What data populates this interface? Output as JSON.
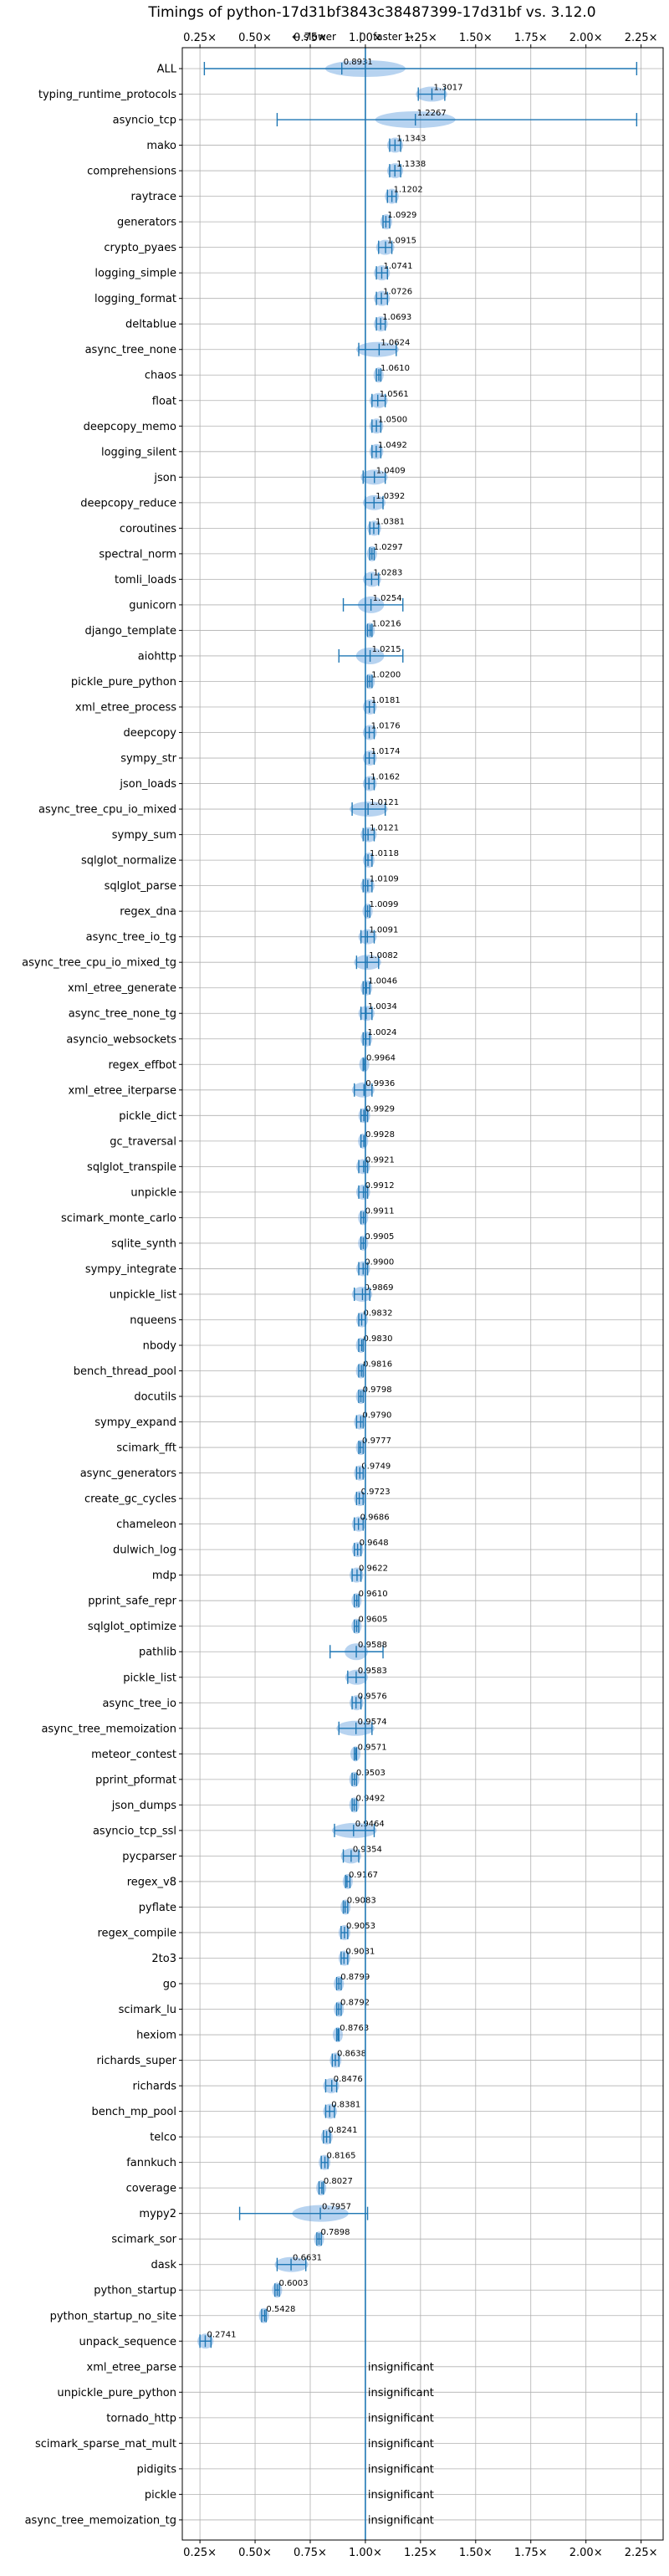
{
  "chart_data": {
    "type": "violin",
    "title": "Timings of python-17d31bf3843c38487399-17d31bf vs. 3.12.0",
    "direction_labels": {
      "slower": "← slower",
      "separator": "|",
      "faster": "faster →"
    },
    "xlim": [
      0.17,
      2.35
    ],
    "x_ticks": [
      0.25,
      0.5,
      0.75,
      1.0,
      1.25,
      1.5,
      1.75,
      2.0,
      2.25
    ],
    "x_tick_labels": [
      "0.25×",
      "0.50×",
      "0.75×",
      "1.00×",
      "1.25×",
      "1.50×",
      "1.75×",
      "2.00×",
      "2.25×"
    ],
    "reference_line": 1.0,
    "insignificant_label": "insignificant",
    "benchmarks": [
      {
        "name": "ALL",
        "value": 0.8931,
        "label": "0.8931",
        "min": 0.27,
        "max": 2.23
      },
      {
        "name": "typing_runtime_protocols",
        "value": 1.3017,
        "label": "1.3017",
        "min": 1.24,
        "max": 1.36
      },
      {
        "name": "asyncio_tcp",
        "value": 1.2267,
        "label": "1.2267",
        "min": 0.6,
        "max": 2.23
      },
      {
        "name": "mako",
        "value": 1.1343,
        "label": "1.1343",
        "min": 1.11,
        "max": 1.16
      },
      {
        "name": "comprehensions",
        "value": 1.1338,
        "label": "1.1338",
        "min": 1.11,
        "max": 1.16
      },
      {
        "name": "raytrace",
        "value": 1.1202,
        "label": "1.1202",
        "min": 1.1,
        "max": 1.14
      },
      {
        "name": "generators",
        "value": 1.0929,
        "label": "1.0929",
        "min": 1.08,
        "max": 1.11
      },
      {
        "name": "crypto_pyaes",
        "value": 1.0915,
        "label": "1.0915",
        "min": 1.06,
        "max": 1.12
      },
      {
        "name": "logging_simple",
        "value": 1.0741,
        "label": "1.0741",
        "min": 1.05,
        "max": 1.1
      },
      {
        "name": "logging_format",
        "value": 1.0726,
        "label": "1.0726",
        "min": 1.05,
        "max": 1.1
      },
      {
        "name": "deltablue",
        "value": 1.0693,
        "label": "1.0693",
        "min": 1.05,
        "max": 1.09
      },
      {
        "name": "async_tree_none",
        "value": 1.0624,
        "label": "1.0624",
        "min": 0.97,
        "max": 1.14
      },
      {
        "name": "chaos",
        "value": 1.061,
        "label": "1.0610",
        "min": 1.05,
        "max": 1.07
      },
      {
        "name": "float",
        "value": 1.0561,
        "label": "1.0561",
        "min": 1.03,
        "max": 1.09
      },
      {
        "name": "deepcopy_memo",
        "value": 1.05,
        "label": "1.0500",
        "min": 1.03,
        "max": 1.07
      },
      {
        "name": "logging_silent",
        "value": 1.0492,
        "label": "1.0492",
        "min": 1.03,
        "max": 1.07
      },
      {
        "name": "json",
        "value": 1.0409,
        "label": "1.0409",
        "min": 0.99,
        "max": 1.09
      },
      {
        "name": "deepcopy_reduce",
        "value": 1.0392,
        "label": "1.0392",
        "min": 1.0,
        "max": 1.08
      },
      {
        "name": "coroutines",
        "value": 1.0381,
        "label": "1.0381",
        "min": 1.02,
        "max": 1.06
      },
      {
        "name": "spectral_norm",
        "value": 1.0297,
        "label": "1.0297",
        "min": 1.02,
        "max": 1.04
      },
      {
        "name": "tomli_loads",
        "value": 1.0283,
        "label": "1.0283",
        "min": 1.0,
        "max": 1.06
      },
      {
        "name": "gunicorn",
        "value": 1.0254,
        "label": "1.0254",
        "min": 0.9,
        "max": 1.17
      },
      {
        "name": "django_template",
        "value": 1.0216,
        "label": "1.0216",
        "min": 1.01,
        "max": 1.03
      },
      {
        "name": "aiohttp",
        "value": 1.0215,
        "label": "1.0215",
        "min": 0.88,
        "max": 1.17
      },
      {
        "name": "pickle_pure_python",
        "value": 1.02,
        "label": "1.0200",
        "min": 1.01,
        "max": 1.03
      },
      {
        "name": "xml_etree_process",
        "value": 1.0181,
        "label": "1.0181",
        "min": 1.0,
        "max": 1.04
      },
      {
        "name": "deepcopy",
        "value": 1.0176,
        "label": "1.0176",
        "min": 1.0,
        "max": 1.04
      },
      {
        "name": "sympy_str",
        "value": 1.0174,
        "label": "1.0174",
        "min": 1.0,
        "max": 1.04
      },
      {
        "name": "json_loads",
        "value": 1.0162,
        "label": "1.0162",
        "min": 1.0,
        "max": 1.04
      },
      {
        "name": "async_tree_cpu_io_mixed",
        "value": 1.0121,
        "label": "1.0121",
        "min": 0.94,
        "max": 1.09
      },
      {
        "name": "sympy_sum",
        "value": 1.0121,
        "label": "1.0121",
        "min": 0.99,
        "max": 1.04
      },
      {
        "name": "sqlglot_normalize",
        "value": 1.0118,
        "label": "1.0118",
        "min": 1.0,
        "max": 1.03
      },
      {
        "name": "sqlglot_parse",
        "value": 1.0109,
        "label": "1.0109",
        "min": 0.99,
        "max": 1.03
      },
      {
        "name": "regex_dna",
        "value": 1.0099,
        "label": "1.0099",
        "min": 1.0,
        "max": 1.02
      },
      {
        "name": "async_tree_io_tg",
        "value": 1.0091,
        "label": "1.0091",
        "min": 0.98,
        "max": 1.04
      },
      {
        "name": "async_tree_cpu_io_mixed_tg",
        "value": 1.0082,
        "label": "1.0082",
        "min": 0.96,
        "max": 1.06
      },
      {
        "name": "xml_etree_generate",
        "value": 1.0046,
        "label": "1.0046",
        "min": 0.99,
        "max": 1.02
      },
      {
        "name": "async_tree_none_tg",
        "value": 1.0034,
        "label": "1.0034",
        "min": 0.98,
        "max": 1.03
      },
      {
        "name": "asyncio_websockets",
        "value": 1.0024,
        "label": "1.0024",
        "min": 0.99,
        "max": 1.02
      },
      {
        "name": "regex_effbot",
        "value": 0.9964,
        "label": "0.9964",
        "min": 0.99,
        "max": 1.0
      },
      {
        "name": "xml_etree_iterparse",
        "value": 0.9936,
        "label": "0.9936",
        "min": 0.95,
        "max": 1.03
      },
      {
        "name": "pickle_dict",
        "value": 0.9929,
        "label": "0.9929",
        "min": 0.98,
        "max": 1.01
      },
      {
        "name": "gc_traversal",
        "value": 0.9928,
        "label": "0.9928",
        "min": 0.98,
        "max": 1.0
      },
      {
        "name": "sqlglot_transpile",
        "value": 0.9921,
        "label": "0.9921",
        "min": 0.97,
        "max": 1.01
      },
      {
        "name": "unpickle",
        "value": 0.9912,
        "label": "0.9912",
        "min": 0.97,
        "max": 1.01
      },
      {
        "name": "scimark_monte_carlo",
        "value": 0.9911,
        "label": "0.9911",
        "min": 0.98,
        "max": 1.0
      },
      {
        "name": "sqlite_synth",
        "value": 0.9905,
        "label": "0.9905",
        "min": 0.98,
        "max": 1.0
      },
      {
        "name": "sympy_integrate",
        "value": 0.99,
        "label": "0.9900",
        "min": 0.97,
        "max": 1.01
      },
      {
        "name": "unpickle_list",
        "value": 0.9869,
        "label": "0.9869",
        "min": 0.95,
        "max": 1.02
      },
      {
        "name": "nqueens",
        "value": 0.9832,
        "label": "0.9832",
        "min": 0.97,
        "max": 1.0
      },
      {
        "name": "nbody",
        "value": 0.983,
        "label": "0.9830",
        "min": 0.97,
        "max": 0.99
      },
      {
        "name": "bench_thread_pool",
        "value": 0.9816,
        "label": "0.9816",
        "min": 0.97,
        "max": 0.99
      },
      {
        "name": "docutils",
        "value": 0.9798,
        "label": "0.9798",
        "min": 0.97,
        "max": 0.99
      },
      {
        "name": "sympy_expand",
        "value": 0.979,
        "label": "0.9790",
        "min": 0.96,
        "max": 0.99
      },
      {
        "name": "scimark_fft",
        "value": 0.9777,
        "label": "0.9777",
        "min": 0.97,
        "max": 0.99
      },
      {
        "name": "async_generators",
        "value": 0.9749,
        "label": "0.9749",
        "min": 0.96,
        "max": 0.99
      },
      {
        "name": "create_gc_cycles",
        "value": 0.9723,
        "label": "0.9723",
        "min": 0.96,
        "max": 0.99
      },
      {
        "name": "chameleon",
        "value": 0.9686,
        "label": "0.9686",
        "min": 0.95,
        "max": 0.99
      },
      {
        "name": "dulwich_log",
        "value": 0.9648,
        "label": "0.9648",
        "min": 0.95,
        "max": 0.98
      },
      {
        "name": "mdp",
        "value": 0.9622,
        "label": "0.9622",
        "min": 0.94,
        "max": 0.98
      },
      {
        "name": "pprint_safe_repr",
        "value": 0.961,
        "label": "0.9610",
        "min": 0.95,
        "max": 0.97
      },
      {
        "name": "sqlglot_optimize",
        "value": 0.9605,
        "label": "0.9605",
        "min": 0.95,
        "max": 0.97
      },
      {
        "name": "pathlib",
        "value": 0.9588,
        "label": "0.9588",
        "min": 0.84,
        "max": 1.08
      },
      {
        "name": "pickle_list",
        "value": 0.9583,
        "label": "0.9583",
        "min": 0.92,
        "max": 1.0
      },
      {
        "name": "async_tree_io",
        "value": 0.9576,
        "label": "0.9576",
        "min": 0.94,
        "max": 0.98
      },
      {
        "name": "async_tree_memoization",
        "value": 0.9574,
        "label": "0.9574",
        "min": 0.88,
        "max": 1.03
      },
      {
        "name": "meteor_contest",
        "value": 0.9571,
        "label": "0.9571",
        "min": 0.95,
        "max": 0.96
      },
      {
        "name": "pprint_pformat",
        "value": 0.9503,
        "label": "0.9503",
        "min": 0.94,
        "max": 0.96
      },
      {
        "name": "json_dumps",
        "value": 0.9492,
        "label": "0.9492",
        "min": 0.94,
        "max": 0.96
      },
      {
        "name": "asyncio_tcp_ssl",
        "value": 0.9464,
        "label": "0.9464",
        "min": 0.86,
        "max": 1.04
      },
      {
        "name": "pycparser",
        "value": 0.9354,
        "label": "0.9354",
        "min": 0.9,
        "max": 0.97
      },
      {
        "name": "regex_v8",
        "value": 0.9167,
        "label": "0.9167",
        "min": 0.91,
        "max": 0.93
      },
      {
        "name": "pyflate",
        "value": 0.9083,
        "label": "0.9083",
        "min": 0.9,
        "max": 0.92
      },
      {
        "name": "regex_compile",
        "value": 0.9053,
        "label": "0.9053",
        "min": 0.89,
        "max": 0.92
      },
      {
        "name": "2to3",
        "value": 0.9031,
        "label": "0.9031",
        "min": 0.89,
        "max": 0.92
      },
      {
        "name": "go",
        "value": 0.8799,
        "label": "0.8799",
        "min": 0.87,
        "max": 0.89
      },
      {
        "name": "scimark_lu",
        "value": 0.8792,
        "label": "0.8792",
        "min": 0.87,
        "max": 0.89
      },
      {
        "name": "hexiom",
        "value": 0.8763,
        "label": "0.8763",
        "min": 0.87,
        "max": 0.88
      },
      {
        "name": "richards_super",
        "value": 0.8638,
        "label": "0.8638",
        "min": 0.85,
        "max": 0.88
      },
      {
        "name": "richards",
        "value": 0.8476,
        "label": "0.8476",
        "min": 0.82,
        "max": 0.87
      },
      {
        "name": "bench_mp_pool",
        "value": 0.8381,
        "label": "0.8381",
        "min": 0.82,
        "max": 0.86
      },
      {
        "name": "telco",
        "value": 0.8241,
        "label": "0.8241",
        "min": 0.81,
        "max": 0.84
      },
      {
        "name": "fannkuch",
        "value": 0.8165,
        "label": "0.8165",
        "min": 0.8,
        "max": 0.83
      },
      {
        "name": "coverage",
        "value": 0.8027,
        "label": "0.8027",
        "min": 0.79,
        "max": 0.81
      },
      {
        "name": "mypy2",
        "value": 0.7957,
        "label": "0.7957",
        "min": 0.43,
        "max": 1.01
      },
      {
        "name": "scimark_sor",
        "value": 0.7898,
        "label": "0.7898",
        "min": 0.78,
        "max": 0.8
      },
      {
        "name": "dask",
        "value": 0.6631,
        "label": "0.6631",
        "min": 0.6,
        "max": 0.73
      },
      {
        "name": "python_startup",
        "value": 0.6003,
        "label": "0.6003",
        "min": 0.59,
        "max": 0.61
      },
      {
        "name": "python_startup_no_site",
        "value": 0.5428,
        "label": "0.5428",
        "min": 0.53,
        "max": 0.55
      },
      {
        "name": "unpack_sequence",
        "value": 0.2741,
        "label": "0.2741",
        "min": 0.25,
        "max": 0.3
      }
    ],
    "insignificant_benchmarks": [
      "xml_etree_parse",
      "unpickle_pure_python",
      "tornado_http",
      "scimark_sparse_mat_mult",
      "pidigits",
      "pickle",
      "async_tree_memoization_tg"
    ],
    "colors": {
      "violin": "#4a90d9",
      "line": "#1f77b4",
      "grid": "#b0b0b0",
      "ref": "#1f77b4",
      "median": "#ff0000"
    }
  }
}
